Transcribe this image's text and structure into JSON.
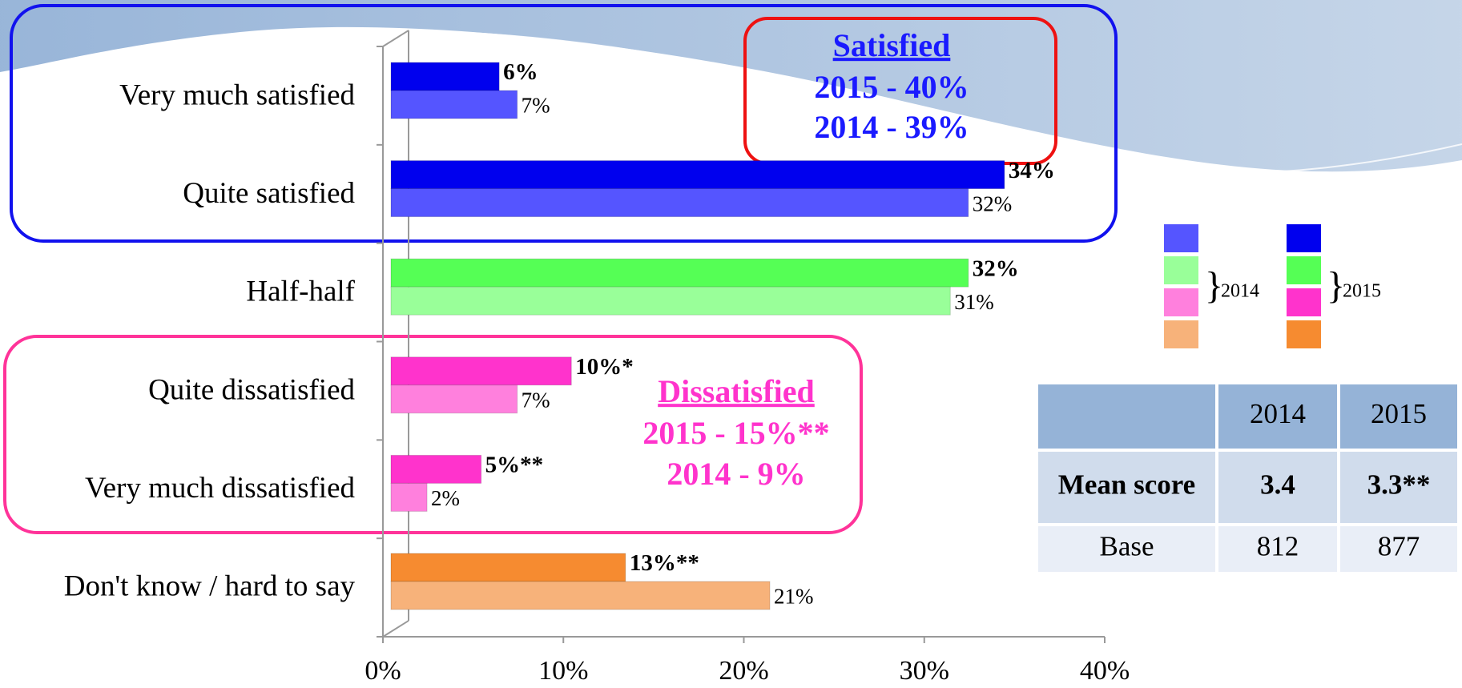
{
  "chart_data": {
    "type": "bar",
    "orientation": "horizontal",
    "categories": [
      "Very much satisfied",
      "Quite satisfied",
      "Half-half",
      "Quite dissatisfied",
      "Very much dissatisfied",
      "Don't know / hard to say"
    ],
    "series": [
      {
        "name": "2015",
        "colors": [
          "#0000ee",
          "#0000ee",
          "#55ff55",
          "#ff33cc",
          "#ff33cc",
          "#f68b30"
        ],
        "values": [
          6,
          34,
          32,
          10,
          5,
          13
        ],
        "value_labels": [
          "6%",
          "34%",
          "32%",
          "10%*",
          "5%**",
          "13%**"
        ]
      },
      {
        "name": "2014",
        "colors": [
          "#5555ff",
          "#5555ff",
          "#99ff99",
          "#ff80dd",
          "#ff80dd",
          "#f7b27a"
        ],
        "values": [
          7,
          32,
          31,
          7,
          2,
          21
        ],
        "value_labels": [
          "7%",
          "32%",
          "31%",
          "7%",
          "2%",
          "21%"
        ]
      }
    ],
    "xlim": [
      0,
      40
    ],
    "xticks": [
      {
        "value": 0,
        "label": "0%"
      },
      {
        "value": 10,
        "label": "10%"
      },
      {
        "value": 20,
        "label": "20%"
      },
      {
        "value": 30,
        "label": "30%"
      },
      {
        "value": 40,
        "label": "40%"
      }
    ],
    "annotations": [
      {
        "lines": [
          "Satisfied",
          "2015 - 40%",
          "2014 - 39%"
        ],
        "color": "#1a1aff",
        "box": "#ee1111",
        "group_box": "#1111ee"
      },
      {
        "lines": [
          "Dissatisfied",
          "2015 - 15%**",
          "2014 - 9%"
        ],
        "color": "#ff33cc",
        "group_box": "#ff3399"
      }
    ]
  },
  "table": {
    "columns": [
      "2014",
      "2015"
    ],
    "rows": [
      {
        "label": "Mean score",
        "values": [
          3.4,
          "3.3**"
        ]
      },
      {
        "label": "Base",
        "values": [
          812,
          877
        ]
      }
    ]
  }
}
